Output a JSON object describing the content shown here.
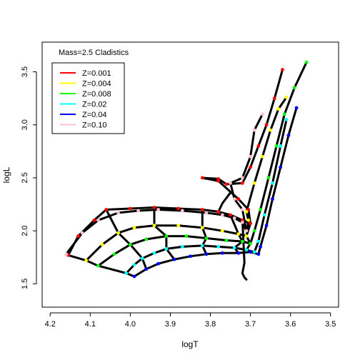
{
  "chart_data": {
    "type": "line",
    "title": "",
    "annotation": "Mass=2.5  Cladistics",
    "xlabel": "logT",
    "ylabel": "logL",
    "xlim": [
      4.22,
      3.48
    ],
    "ylim": [
      1.28,
      3.78
    ],
    "x_ticks": [
      4.2,
      4.1,
      4.0,
      3.9,
      3.8,
      3.7,
      3.6,
      3.5
    ],
    "x_tick_labels": [
      "4.2",
      "4.1",
      "4.0",
      "3.9",
      "3.8",
      "3.7",
      "3.6",
      "3.5"
    ],
    "y_ticks": [
      1.5,
      2.0,
      2.5,
      3.0,
      3.5
    ],
    "y_tick_labels": [
      "1.5",
      "2.0",
      "2.5",
      "3.0",
      "3.5"
    ],
    "grid": false,
    "legend_placement": "top-left",
    "series": [
      {
        "name": "Z=0.001",
        "color": "#ff0000",
        "x": [
          4.155,
          4.13,
          4.09,
          4.06,
          4.0,
          3.94,
          3.88,
          3.82,
          3.78,
          3.75,
          3.72,
          3.7,
          3.705,
          3.73,
          3.78,
          3.82,
          3.78,
          3.76,
          3.72,
          3.7,
          3.68,
          3.66,
          3.64,
          3.62
        ],
        "y": [
          1.77,
          1.95,
          2.1,
          2.2,
          2.21,
          2.22,
          2.21,
          2.2,
          2.18,
          2.15,
          2.1,
          2.07,
          2.2,
          2.3,
          2.47,
          2.5,
          2.49,
          2.44,
          2.45,
          2.6,
          2.8,
          3.0,
          3.25,
          3.52
        ]
      },
      {
        "name": "Z=0.004",
        "color": "#ffff00",
        "x": [
          4.11,
          4.07,
          4.03,
          3.99,
          3.94,
          3.88,
          3.82,
          3.77,
          3.73,
          3.71,
          3.705,
          3.71,
          3.69,
          3.67,
          3.65,
          3.63,
          3.61
        ],
        "y": [
          1.72,
          1.87,
          1.98,
          2.03,
          2.05,
          2.05,
          2.03,
          2.0,
          1.97,
          1.95,
          2.1,
          2.18,
          2.45,
          2.7,
          2.95,
          3.15,
          3.26
        ]
      },
      {
        "name": "Z=0.008",
        "color": "#00ff00",
        "x": [
          4.08,
          4.04,
          4.0,
          3.96,
          3.91,
          3.86,
          3.81,
          3.76,
          3.72,
          3.7,
          3.69,
          3.675,
          3.655,
          3.635,
          3.615,
          3.59,
          3.56
        ],
        "y": [
          1.67,
          1.78,
          1.87,
          1.92,
          1.95,
          1.95,
          1.93,
          1.91,
          1.9,
          1.88,
          2.0,
          2.2,
          2.5,
          2.8,
          3.1,
          3.35,
          3.59
        ]
      },
      {
        "name": "Z=0.02",
        "color": "#00ffff",
        "x": [
          4.01,
          3.99,
          3.97,
          3.94,
          3.91,
          3.87,
          3.82,
          3.78,
          3.74,
          3.71,
          3.69,
          3.68,
          3.665,
          3.645,
          3.625,
          3.61
        ],
        "y": [
          1.6,
          1.68,
          1.74,
          1.79,
          1.83,
          1.85,
          1.86,
          1.85,
          1.84,
          1.82,
          1.8,
          1.9,
          2.15,
          2.45,
          2.8,
          3.05
        ]
      },
      {
        "name": "Z=0.04",
        "color": "#0000ff",
        "x": [
          3.99,
          3.96,
          3.93,
          3.89,
          3.85,
          3.81,
          3.77,
          3.73,
          3.7,
          3.68,
          3.675,
          3.66,
          3.645,
          3.625,
          3.605,
          3.585
        ],
        "y": [
          1.57,
          1.64,
          1.69,
          1.73,
          1.76,
          1.78,
          1.79,
          1.79,
          1.8,
          1.78,
          1.85,
          2.05,
          2.3,
          2.6,
          2.9,
          3.16
        ]
      },
      {
        "name": "Z=0.10",
        "color": "#ffc0cb",
        "x": [
          4.16,
          4.12,
          4.08,
          4.03,
          3.98,
          3.93,
          3.87,
          3.81,
          3.77,
          3.74,
          3.72,
          3.71,
          3.72,
          3.74,
          3.75,
          3.72,
          3.7,
          3.69,
          3.67
        ],
        "y": [
          1.78,
          1.98,
          2.1,
          2.17,
          2.19,
          2.2,
          2.19,
          2.17,
          2.15,
          2.12,
          2.08,
          2.0,
          2.2,
          2.3,
          2.45,
          2.5,
          2.7,
          2.95,
          3.1
        ]
      }
    ],
    "connectors": [
      {
        "x": [
          4.155,
          4.11,
          4.08,
          4.01,
          3.99
        ],
        "y": [
          1.77,
          1.72,
          1.67,
          1.6,
          1.57
        ]
      },
      {
        "x": [
          4.06,
          4.03,
          4.0,
          3.97,
          3.96
        ],
        "y": [
          2.2,
          1.98,
          1.87,
          1.74,
          1.64
        ]
      },
      {
        "x": [
          3.94,
          3.94,
          3.91,
          3.91,
          3.89
        ],
        "y": [
          2.22,
          2.05,
          1.95,
          1.83,
          1.73
        ]
      },
      {
        "x": [
          3.82,
          3.82,
          3.81,
          3.82,
          3.81
        ],
        "y": [
          2.2,
          2.03,
          1.93,
          1.86,
          1.78
        ]
      },
      {
        "x": [
          3.75,
          3.73,
          3.72,
          3.74,
          3.73
        ],
        "y": [
          2.15,
          1.97,
          1.9,
          1.84,
          1.79
        ]
      },
      {
        "x": [
          3.7,
          3.71,
          3.7,
          3.71,
          3.7
        ],
        "y": [
          2.07,
          1.95,
          1.88,
          1.82,
          1.8
        ]
      },
      {
        "x": [
          3.72,
          3.715,
          3.72,
          3.715,
          3.71
        ],
        "y": [
          2.1,
          1.7,
          1.6,
          1.56,
          1.54
        ]
      },
      {
        "x": [
          3.78,
          3.77,
          3.75
        ],
        "y": [
          2.18,
          2.26,
          2.36
        ]
      }
    ]
  },
  "legend": {
    "entries": [
      {
        "label": "Z=0.001",
        "color": "#ff0000"
      },
      {
        "label": "Z=0.004",
        "color": "#ffff00"
      },
      {
        "label": "Z=0.008",
        "color": "#00ff00"
      },
      {
        "label": "Z=0.02",
        "color": "#00ffff"
      },
      {
        "label": "Z=0.04",
        "color": "#0000ff"
      },
      {
        "label": "Z=0.10",
        "color": "#ffc0cb"
      }
    ]
  }
}
